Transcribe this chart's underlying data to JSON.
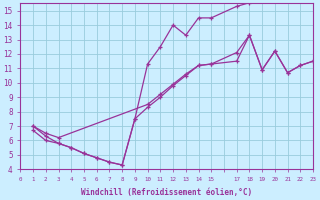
{
  "xlabel": "Windchill (Refroidissement éolien,°C)",
  "bg_color": "#cceeff",
  "grid_color": "#99ccdd",
  "line_color": "#993399",
  "xlim": [
    0,
    23
  ],
  "ylim": [
    4,
    15.5
  ],
  "yticks": [
    4,
    5,
    6,
    7,
    8,
    9,
    10,
    11,
    12,
    13,
    14,
    15
  ],
  "line1_x": [
    1,
    2,
    3,
    4,
    5,
    6,
    7,
    8,
    9,
    10,
    11,
    12,
    13,
    14,
    15,
    17,
    18
  ],
  "line1_y": [
    7.0,
    6.3,
    5.8,
    5.5,
    5.1,
    4.8,
    4.5,
    4.3,
    7.5,
    11.3,
    12.5,
    14.0,
    13.3,
    14.5,
    14.5,
    15.3,
    15.55
  ],
  "line2_x": [
    1,
    2,
    3,
    4,
    5,
    6,
    7,
    8,
    9,
    10,
    11,
    12,
    13,
    14,
    15,
    17,
    18,
    19,
    20,
    21,
    22,
    23
  ],
  "line2_y": [
    6.7,
    6.0,
    5.8,
    5.5,
    5.1,
    4.8,
    4.5,
    4.3,
    7.5,
    8.3,
    9.0,
    9.8,
    10.5,
    11.2,
    11.3,
    12.1,
    13.3,
    10.9,
    12.2,
    10.7,
    11.2,
    11.5
  ],
  "line3_x": [
    1,
    2,
    3,
    10,
    11,
    12,
    13,
    14,
    15,
    17,
    18,
    19,
    20,
    21,
    22,
    23
  ],
  "line3_y": [
    7.0,
    6.5,
    6.2,
    8.5,
    9.2,
    9.9,
    10.6,
    11.2,
    11.3,
    11.5,
    13.3,
    10.9,
    12.2,
    10.7,
    11.2,
    11.5
  ]
}
